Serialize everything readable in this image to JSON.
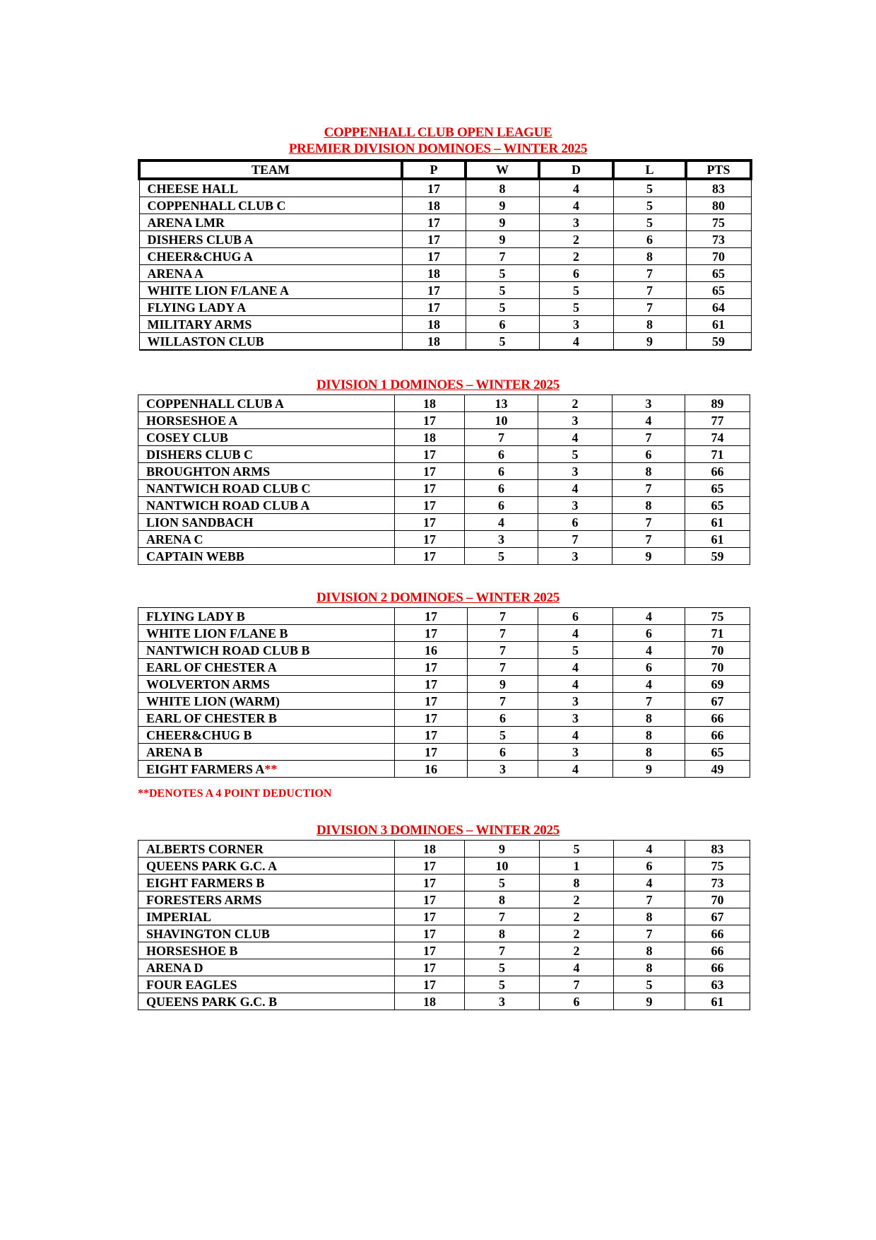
{
  "league_title": "COPPENHALL CLUB OPEN LEAGUE",
  "headers": [
    "TEAM",
    "P",
    "W",
    "D",
    "L",
    "PTS"
  ],
  "divisions": [
    {
      "title": "PREMIER DIVISION DOMINOES – WINTER 2025",
      "rows": [
        [
          "CHEESE HALL",
          "17",
          "8",
          "4",
          "5",
          "83"
        ],
        [
          "COPPENHALL CLUB C",
          "18",
          "9",
          "4",
          "5",
          "80"
        ],
        [
          "ARENA LMR",
          "17",
          "9",
          "3",
          "5",
          "75"
        ],
        [
          "DISHERS CLUB A",
          "17",
          "9",
          "2",
          "6",
          "73"
        ],
        [
          "CHEER&CHUG A",
          "17",
          "7",
          "2",
          "8",
          "70"
        ],
        [
          "ARENA A",
          "18",
          "5",
          "6",
          "7",
          "65"
        ],
        [
          "WHITE LION F/LANE A",
          "17",
          "5",
          "5",
          "7",
          "65"
        ],
        [
          "FLYING LADY A",
          "17",
          "5",
          "5",
          "7",
          "64"
        ],
        [
          "MILITARY ARMS",
          "18",
          "6",
          "3",
          "8",
          "61"
        ],
        [
          "WILLASTON CLUB",
          "18",
          "5",
          "4",
          "9",
          "59"
        ]
      ]
    },
    {
      "title": "DIVISION 1 DOMINOES – WINTER 2025",
      "rows": [
        [
          "COPPENHALL CLUB A",
          "18",
          "13",
          "2",
          "3",
          "89"
        ],
        [
          "HORSESHOE A",
          "17",
          "10",
          "3",
          "4",
          "77"
        ],
        [
          "COSEY CLUB",
          "18",
          "7",
          "4",
          "7",
          "74"
        ],
        [
          "DISHERS CLUB C",
          "17",
          "6",
          "5",
          "6",
          "71"
        ],
        [
          "BROUGHTON ARMS",
          "17",
          "6",
          "3",
          "8",
          "66"
        ],
        [
          "NANTWICH ROAD CLUB C",
          "17",
          "6",
          "4",
          "7",
          "65"
        ],
        [
          "NANTWICH ROAD CLUB A",
          "17",
          "6",
          "3",
          "8",
          "65"
        ],
        [
          "LION SANDBACH",
          "17",
          "4",
          "6",
          "7",
          "61"
        ],
        [
          "ARENA C",
          "17",
          "3",
          "7",
          "7",
          "61"
        ],
        [
          "CAPTAIN WEBB",
          "17",
          "5",
          "3",
          "9",
          "59"
        ]
      ]
    },
    {
      "title": "DIVISION 2 DOMINOES – WINTER 2025",
      "rows": [
        [
          "FLYING LADY B",
          "17",
          "7",
          "6",
          "4",
          "75"
        ],
        [
          "WHITE LION F/LANE B",
          "17",
          "7",
          "4",
          "6",
          "71"
        ],
        [
          "NANTWICH ROAD CLUB B",
          "16",
          "7",
          "5",
          "4",
          "70"
        ],
        [
          "EARL OF CHESTER A",
          "17",
          "7",
          "4",
          "6",
          "70"
        ],
        [
          "WOLVERTON ARMS",
          "17",
          "9",
          "4",
          "4",
          "69"
        ],
        [
          "WHITE LION (WARM)",
          "17",
          "7",
          "3",
          "7",
          "67"
        ],
        [
          "EARL OF CHESTER B",
          "17",
          "6",
          "3",
          "8",
          "66"
        ],
        [
          "CHEER&CHUG B",
          "17",
          "5",
          "4",
          "8",
          "66"
        ],
        [
          "ARENA B",
          "17",
          "6",
          "3",
          "8",
          "65"
        ],
        [
          "EIGHT FARMERS A",
          "16",
          "3",
          "4",
          "9",
          "49"
        ]
      ],
      "marked_team_suffix": "**",
      "note": "**DENOTES A 4 POINT DEDUCTION"
    },
    {
      "title": "DIVISION 3 DOMINOES – WINTER 2025",
      "rows": [
        [
          "ALBERTS CORNER",
          "18",
          "9",
          "5",
          "4",
          "83"
        ],
        [
          "QUEENS PARK G.C. A",
          "17",
          "10",
          "1",
          "6",
          "75"
        ],
        [
          "EIGHT FARMERS B",
          "17",
          "5",
          "8",
          "4",
          "73"
        ],
        [
          "FORESTERS ARMS",
          "17",
          "8",
          "2",
          "7",
          "70"
        ],
        [
          "IMPERIAL",
          "17",
          "7",
          "2",
          "8",
          "67"
        ],
        [
          "SHAVINGTON CLUB",
          "17",
          "8",
          "2",
          "7",
          "66"
        ],
        [
          "HORSESHOE B",
          "17",
          "7",
          "2",
          "8",
          "66"
        ],
        [
          "ARENA D",
          "17",
          "5",
          "4",
          "8",
          "66"
        ],
        [
          "FOUR EAGLES",
          "17",
          "5",
          "7",
          "5",
          "63"
        ],
        [
          "QUEENS PARK G.C. B",
          "18",
          "3",
          "6",
          "9",
          "61"
        ]
      ]
    }
  ],
  "colors": {
    "heading": "#e00000",
    "text": "#000000"
  }
}
